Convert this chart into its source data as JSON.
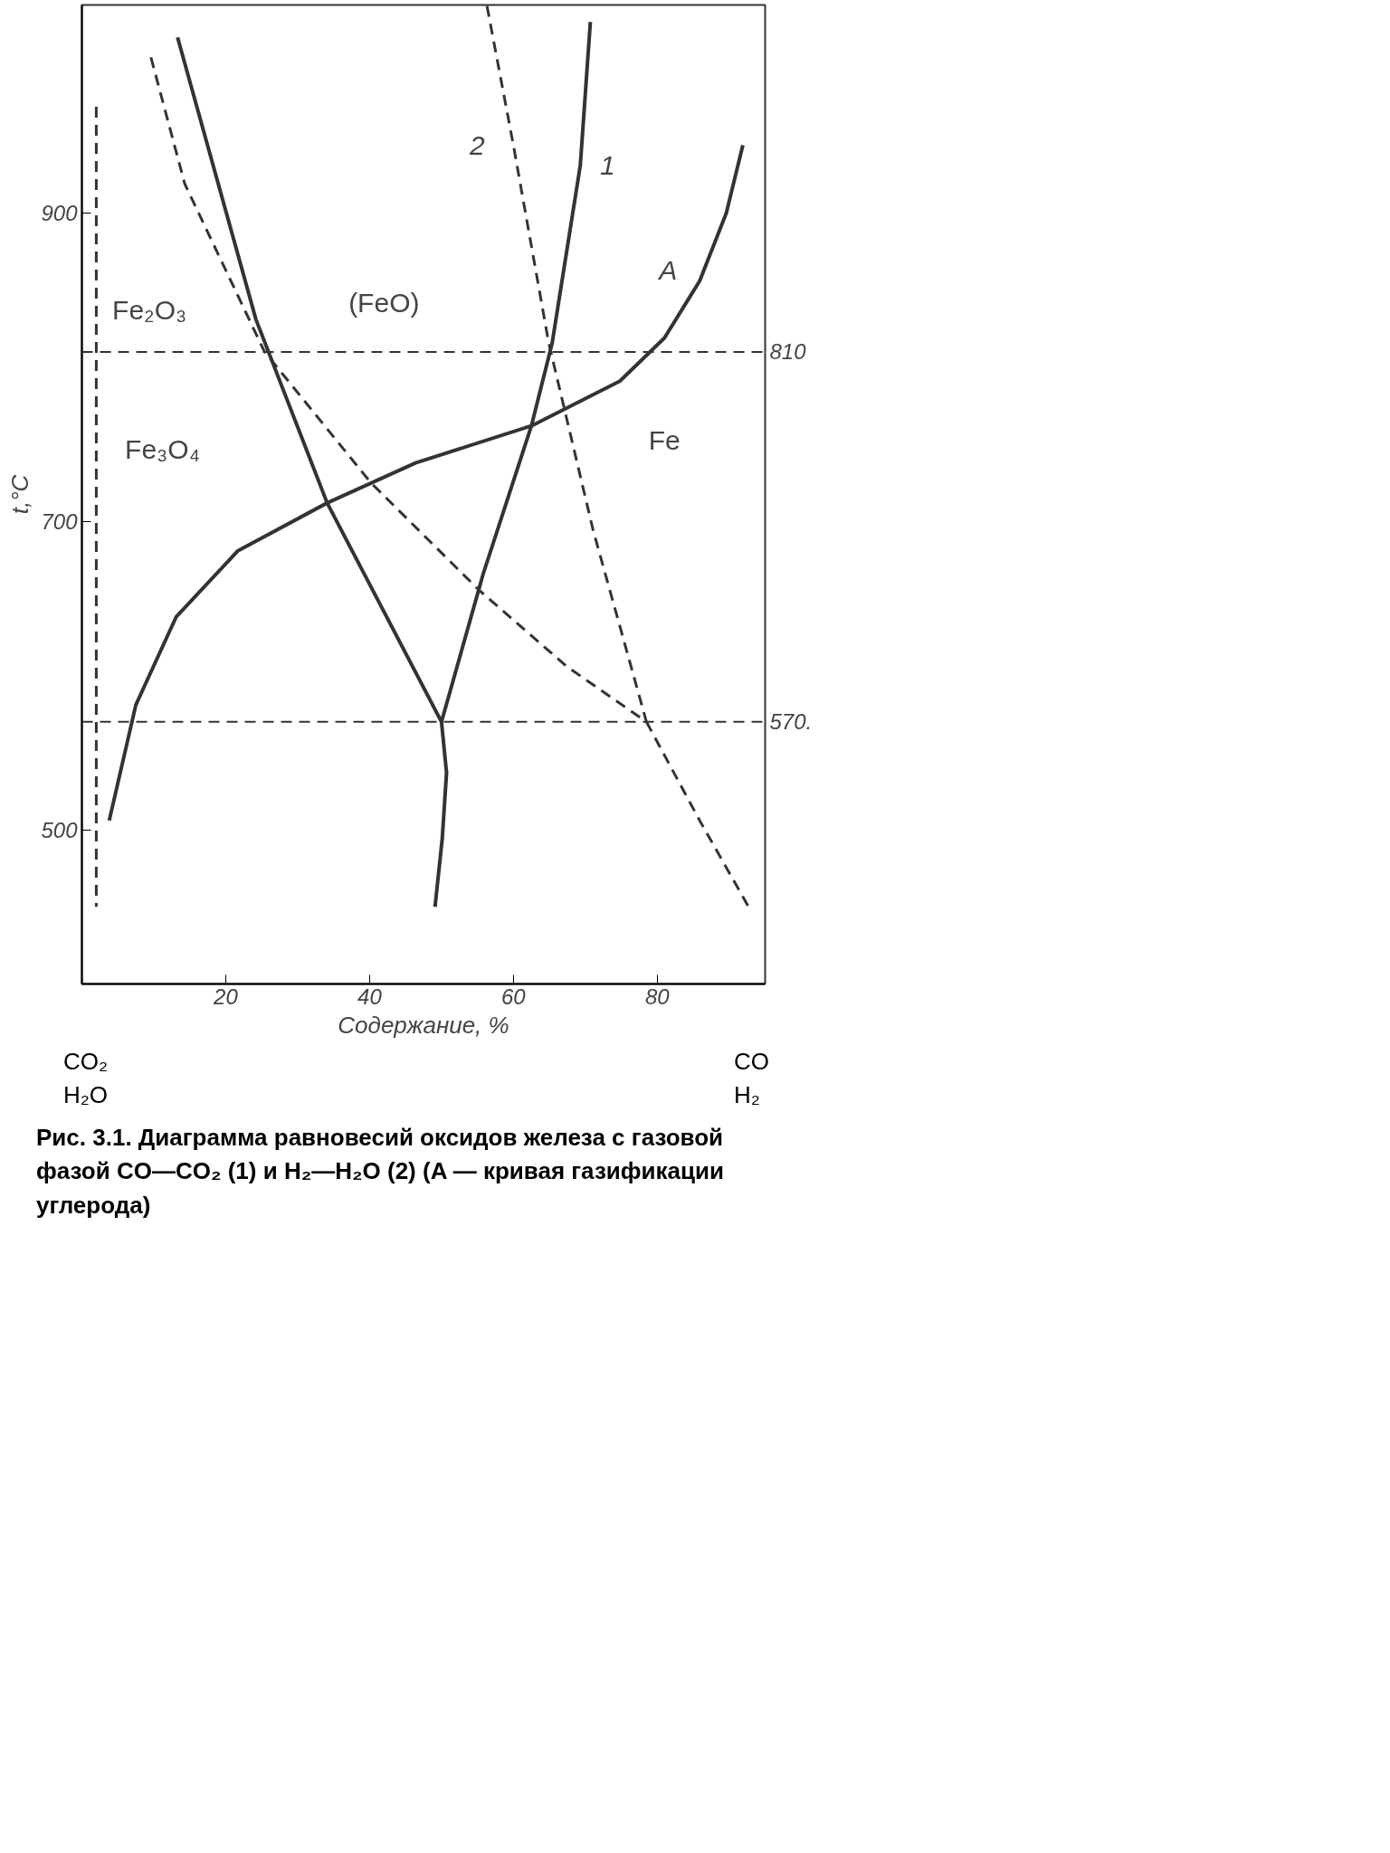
{
  "chart_data": {
    "type": "line",
    "xlabel": "Содержание, %",
    "ylabel": "t,°C",
    "xlim": [
      0,
      95
    ],
    "xticks": [
      20,
      40,
      60,
      80
    ],
    "ylim": [
      400,
      1035
    ],
    "yticks": [
      500,
      700,
      900
    ],
    "grid": false,
    "series": [
      {
        "name": "1",
        "color": "#333333",
        "line_style": "solid",
        "x": [
          13.3,
          24.2,
          34.1,
          50.0,
          55.8,
          62.5,
          65.4,
          69.3,
          70.7,
          null,
          50.0,
          50.7,
          50.1,
          49.1
        ],
        "values": [
          1014,
          831,
          712,
          570,
          666,
          762,
          816,
          931,
          1024,
          null,
          570,
          537,
          494,
          450
        ]
      },
      {
        "name": "2",
        "color": "#333333",
        "line_style": "dashed",
        "x": [
          9.6,
          14.3,
          25.4,
          40.2,
          55.1,
          67.4,
          78.5,
          71.1,
          64.9,
          60.0,
          56.3,
          null,
          78.5,
          85.9,
          92.7
        ],
        "values": [
          1001,
          919,
          810,
          725,
          656,
          606,
          570,
          694,
          816,
          944,
          1035,
          null,
          570,
          506,
          450
        ]
      },
      {
        "color": "#333333",
        "line_style": "dashed",
        "x": [
          2,
          2
        ],
        "values": [
          969,
          450
        ]
      },
      {
        "name": "A",
        "color": "#333333",
        "line_style": "solid",
        "x": [
          3.8,
          7.5,
          13.1,
          21.7,
          34.1,
          46.4,
          62.5,
          74.8,
          81.0,
          85.9,
          89.6,
          91.9
        ],
        "values": [
          506,
          581,
          638,
          681,
          712,
          738,
          762,
          791,
          819,
          856,
          900,
          944
        ]
      }
    ],
    "ref_lines": [
      {
        "axis": "y",
        "value": 810,
        "label": "810",
        "line_style": "dashed",
        "color": "#333333"
      },
      {
        "axis": "y",
        "value": 570,
        "label": "570.",
        "line_style": "dashed",
        "color": "#333333"
      }
    ],
    "annotations": [
      "Fe₂O₃",
      "Fe₃O₄",
      "(FeO)",
      "Fe",
      "CO₂\nH₂O",
      "CO\nH₂",
      "Рис. 3.1. Диаграмма равновесий оксидов железа с газовой фазой CO—CO₂ (1) и H₂—H₂O (2) (A — кривая газификации углерода)"
    ]
  }
}
